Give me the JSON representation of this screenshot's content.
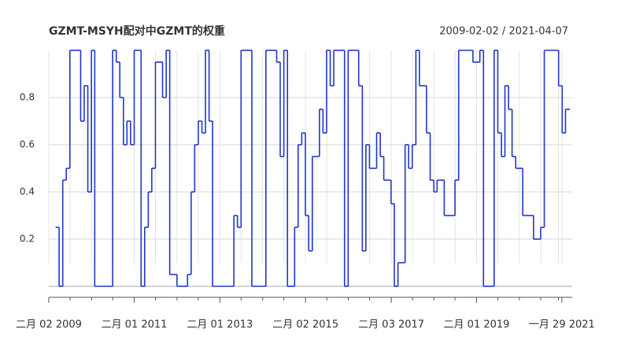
{
  "chart_data": {
    "type": "step",
    "title": "GZMT-MSYH配对中GZMT的权重",
    "subtitle": "2009-02-02 / 2021-04-07",
    "x": [
      "2009-04",
      "2009-05",
      "2009-06",
      "2009-07",
      "2009-08",
      "2009-11",
      "2009-12",
      "2010-01",
      "2010-02",
      "2010-03",
      "2010-08",
      "2010-09",
      "2010-10",
      "2010-11",
      "2010-12",
      "2011-01",
      "2011-02",
      "2011-04",
      "2011-05",
      "2011-06",
      "2011-07",
      "2011-08",
      "2011-10",
      "2011-11",
      "2011-12",
      "2012-02",
      "2012-05",
      "2012-06",
      "2012-07",
      "2012-08",
      "2012-09",
      "2012-10",
      "2012-11",
      "2012-12",
      "2013-06",
      "2013-07",
      "2013-08",
      "2013-11",
      "2014-03",
      "2014-06",
      "2014-07",
      "2014-08",
      "2014-09",
      "2014-11",
      "2014-12",
      "2015-01",
      "2015-02",
      "2015-03",
      "2015-04",
      "2015-06",
      "2015-07",
      "2015-08",
      "2015-09",
      "2015-10",
      "2016-01",
      "2016-02",
      "2016-05",
      "2016-06",
      "2016-07",
      "2016-08",
      "2016-10",
      "2016-11",
      "2016-12",
      "2017-02",
      "2017-03",
      "2017-04",
      "2017-06",
      "2017-07",
      "2017-08",
      "2017-09",
      "2017-10",
      "2017-12",
      "2018-01",
      "2018-02",
      "2018-03",
      "2018-05",
      "2018-08",
      "2018-09",
      "2019-01",
      "2019-03",
      "2019-04",
      "2019-07",
      "2019-08",
      "2019-09",
      "2019-10",
      "2019-11",
      "2019-12",
      "2020-01",
      "2020-03",
      "2020-06",
      "2020-08",
      "2020-09",
      "2021-01",
      "2021-02",
      "2021-03"
    ],
    "series": [
      {
        "color": "#1f36c8",
        "values": [
          0.25,
          0,
          0.45,
          0.5,
          1,
          0.7,
          0.85,
          0.4,
          1,
          0,
          1,
          0.95,
          0.8,
          0.6,
          0.7,
          0.6,
          1,
          0,
          0.25,
          0.4,
          0.5,
          0.95,
          0.8,
          1,
          0.05,
          0,
          0.05,
          0.4,
          0.6,
          0.7,
          0.65,
          1,
          0.7,
          0,
          0.3,
          0.25,
          1,
          0,
          1,
          0.95,
          0.55,
          1,
          0,
          0.25,
          0.6,
          0.65,
          0.3,
          0.15,
          0.55,
          0.75,
          0.65,
          1,
          0.85,
          1,
          0,
          1,
          0.85,
          0.15,
          0.6,
          0.5,
          0.65,
          0.55,
          0.45,
          0.35,
          0,
          0.1,
          0.6,
          0.5,
          0.6,
          1,
          0.85,
          0.65,
          0.45,
          0.4,
          0.45,
          0.3,
          0.45,
          1,
          0.95,
          1,
          0,
          1,
          0.65,
          0.55,
          0.85,
          0.75,
          0.55,
          0.5,
          0.3,
          0.2,
          0.25,
          1,
          0.85,
          0.65,
          0.75
        ]
      }
    ],
    "xlim": [
      "2009-02-02",
      "2021-04-07"
    ],
    "xticks": [
      {
        "value": "2009-02-02",
        "label": "二月 02 2009"
      },
      {
        "value": "2011-02-01",
        "label": "二月 01 2011"
      },
      {
        "value": "2013-02-01",
        "label": "二月 01 2013"
      },
      {
        "value": "2015-02-02",
        "label": "二月 02 2015"
      },
      {
        "value": "2017-02-03",
        "label": "二月 03 2017"
      },
      {
        "value": "2019-02-01",
        "label": "二月 01 2019"
      },
      {
        "value": "2021-01-29",
        "label": "一月 29 2021"
      }
    ],
    "xminorticks": [
      "2009-08-03",
      "2010-02-02",
      "2010-08-02",
      "2011-08-01",
      "2012-02-01",
      "2012-08-01",
      "2013-08-01",
      "2014-02-01",
      "2014-08-01",
      "2015-08-03",
      "2016-02-02",
      "2016-08-02",
      "2017-08-03",
      "2018-02-01",
      "2018-08-01",
      "2019-08-01",
      "2020-02-01",
      "2020-08-01",
      "2020-12-31"
    ],
    "ylim": [
      0,
      1
    ],
    "yticks": [
      0.2,
      0.4,
      0.6,
      0.8
    ],
    "grid": true
  }
}
